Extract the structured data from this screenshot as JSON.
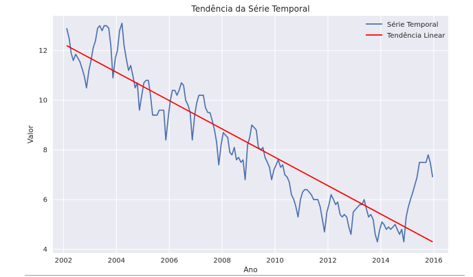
{
  "chart_data": {
    "type": "line",
    "title": "Tendência da Série Temporal",
    "xlabel": "Ano",
    "ylabel": "Valor",
    "xlim": [
      2001.6,
      2016.55
    ],
    "ylim": [
      3.85,
      13.4
    ],
    "xticks": [
      2002,
      2004,
      2006,
      2008,
      2010,
      2012,
      2014,
      2016
    ],
    "xtick_labels": [
      "2002",
      "2004",
      "2006",
      "2008",
      "2010",
      "2012",
      "2014",
      "2016"
    ],
    "yticks": [
      4,
      6,
      8,
      10,
      12
    ],
    "ytick_labels": [
      "4",
      "6",
      "8",
      "10",
      "12"
    ],
    "grid": true,
    "legend_position": "top-right",
    "series": [
      {
        "name": "Série Temporal",
        "color": "#4c72b0",
        "points": [
          [
            2002.12,
            12.9
          ],
          [
            2002.21,
            12.5
          ],
          [
            2002.29,
            11.9
          ],
          [
            2002.37,
            11.6
          ],
          [
            2002.46,
            11.85
          ],
          [
            2002.54,
            11.7
          ],
          [
            2002.62,
            11.55
          ],
          [
            2002.71,
            11.25
          ],
          [
            2002.79,
            10.95
          ],
          [
            2002.87,
            10.5
          ],
          [
            2002.96,
            11.2
          ],
          [
            2003.04,
            11.6
          ],
          [
            2003.12,
            12.1
          ],
          [
            2003.21,
            12.4
          ],
          [
            2003.29,
            12.9
          ],
          [
            2003.37,
            13.0
          ],
          [
            2003.46,
            12.8
          ],
          [
            2003.54,
            13.0
          ],
          [
            2003.62,
            13.0
          ],
          [
            2003.71,
            12.9
          ],
          [
            2003.79,
            12.2
          ],
          [
            2003.87,
            10.9
          ],
          [
            2003.96,
            11.7
          ],
          [
            2004.04,
            12.0
          ],
          [
            2004.12,
            12.8
          ],
          [
            2004.21,
            13.1
          ],
          [
            2004.29,
            12.2
          ],
          [
            2004.37,
            11.7
          ],
          [
            2004.46,
            11.2
          ],
          [
            2004.54,
            11.4
          ],
          [
            2004.62,
            11.0
          ],
          [
            2004.71,
            10.5
          ],
          [
            2004.79,
            10.7
          ],
          [
            2004.87,
            9.6
          ],
          [
            2004.96,
            10.2
          ],
          [
            2005.04,
            10.7
          ],
          [
            2005.12,
            10.8
          ],
          [
            2005.21,
            10.8
          ],
          [
            2005.29,
            10.2
          ],
          [
            2005.37,
            9.4
          ],
          [
            2005.46,
            9.4
          ],
          [
            2005.54,
            9.4
          ],
          [
            2005.62,
            9.6
          ],
          [
            2005.71,
            9.6
          ],
          [
            2005.79,
            9.6
          ],
          [
            2005.87,
            8.4
          ],
          [
            2005.96,
            9.3
          ],
          [
            2006.04,
            10.0
          ],
          [
            2006.12,
            10.4
          ],
          [
            2006.21,
            10.4
          ],
          [
            2006.29,
            10.2
          ],
          [
            2006.37,
            10.4
          ],
          [
            2006.46,
            10.7
          ],
          [
            2006.54,
            10.6
          ],
          [
            2006.62,
            10.0
          ],
          [
            2006.71,
            9.8
          ],
          [
            2006.79,
            9.5
          ],
          [
            2006.87,
            8.4
          ],
          [
            2006.96,
            9.4
          ],
          [
            2007.04,
            9.9
          ],
          [
            2007.12,
            10.2
          ],
          [
            2007.21,
            10.2
          ],
          [
            2007.29,
            10.2
          ],
          [
            2007.37,
            9.7
          ],
          [
            2007.46,
            9.5
          ],
          [
            2007.54,
            9.5
          ],
          [
            2007.62,
            9.2
          ],
          [
            2007.71,
            8.8
          ],
          [
            2007.79,
            8.3
          ],
          [
            2007.87,
            7.4
          ],
          [
            2007.96,
            8.2
          ],
          [
            2008.04,
            8.7
          ],
          [
            2008.12,
            8.6
          ],
          [
            2008.21,
            8.5
          ],
          [
            2008.29,
            7.9
          ],
          [
            2008.37,
            7.8
          ],
          [
            2008.46,
            8.1
          ],
          [
            2008.54,
            7.6
          ],
          [
            2008.62,
            7.7
          ],
          [
            2008.71,
            7.5
          ],
          [
            2008.79,
            7.6
          ],
          [
            2008.87,
            6.8
          ],
          [
            2008.96,
            8.2
          ],
          [
            2009.04,
            8.5
          ],
          [
            2009.12,
            9.0
          ],
          [
            2009.21,
            8.9
          ],
          [
            2009.29,
            8.8
          ],
          [
            2009.37,
            8.1
          ],
          [
            2009.46,
            8.0
          ],
          [
            2009.54,
            8.1
          ],
          [
            2009.62,
            7.7
          ],
          [
            2009.71,
            7.5
          ],
          [
            2009.79,
            7.3
          ],
          [
            2009.87,
            6.8
          ],
          [
            2009.96,
            7.2
          ],
          [
            2010.04,
            7.4
          ],
          [
            2010.12,
            7.6
          ],
          [
            2010.21,
            7.3
          ],
          [
            2010.29,
            7.4
          ],
          [
            2010.37,
            7.0
          ],
          [
            2010.46,
            6.9
          ],
          [
            2010.54,
            6.7
          ],
          [
            2010.62,
            6.2
          ],
          [
            2010.71,
            6.0
          ],
          [
            2010.79,
            5.7
          ],
          [
            2010.87,
            5.3
          ],
          [
            2010.96,
            6.0
          ],
          [
            2011.04,
            6.3
          ],
          [
            2011.12,
            6.4
          ],
          [
            2011.21,
            6.4
          ],
          [
            2011.29,
            6.3
          ],
          [
            2011.37,
            6.2
          ],
          [
            2011.46,
            6.0
          ],
          [
            2011.54,
            6.0
          ],
          [
            2011.62,
            6.0
          ],
          [
            2011.71,
            5.7
          ],
          [
            2011.79,
            5.2
          ],
          [
            2011.87,
            4.7
          ],
          [
            2011.96,
            5.5
          ],
          [
            2012.04,
            5.8
          ],
          [
            2012.12,
            6.2
          ],
          [
            2012.21,
            6.0
          ],
          [
            2012.29,
            5.8
          ],
          [
            2012.37,
            5.9
          ],
          [
            2012.46,
            5.4
          ],
          [
            2012.54,
            5.3
          ],
          [
            2012.62,
            5.4
          ],
          [
            2012.71,
            5.3
          ],
          [
            2012.79,
            4.9
          ],
          [
            2012.87,
            4.6
          ],
          [
            2012.96,
            5.5
          ],
          [
            2013.04,
            5.6
          ],
          [
            2013.12,
            5.7
          ],
          [
            2013.21,
            5.8
          ],
          [
            2013.29,
            5.8
          ],
          [
            2013.37,
            6.0
          ],
          [
            2013.46,
            5.6
          ],
          [
            2013.54,
            5.3
          ],
          [
            2013.62,
            5.4
          ],
          [
            2013.71,
            5.2
          ],
          [
            2013.79,
            4.6
          ],
          [
            2013.87,
            4.3
          ],
          [
            2013.96,
            4.8
          ],
          [
            2014.04,
            5.1
          ],
          [
            2014.12,
            5.0
          ],
          [
            2014.21,
            4.8
          ],
          [
            2014.29,
            4.9
          ],
          [
            2014.37,
            4.8
          ],
          [
            2014.46,
            4.9
          ],
          [
            2014.54,
            5.0
          ],
          [
            2014.62,
            4.8
          ],
          [
            2014.71,
            4.6
          ],
          [
            2014.79,
            4.8
          ],
          [
            2014.87,
            4.3
          ],
          [
            2014.96,
            5.3
          ],
          [
            2015.04,
            5.7
          ],
          [
            2015.12,
            6.0
          ],
          [
            2015.21,
            6.3
          ],
          [
            2015.29,
            6.6
          ],
          [
            2015.37,
            6.9
          ],
          [
            2015.46,
            7.5
          ],
          [
            2015.54,
            7.5
          ],
          [
            2015.62,
            7.5
          ],
          [
            2015.71,
            7.5
          ],
          [
            2015.79,
            7.8
          ],
          [
            2015.87,
            7.5
          ],
          [
            2015.96,
            6.9
          ]
        ]
      },
      {
        "name": "Tendência Linear",
        "color": "#ff0000",
        "points": [
          [
            2002.12,
            12.2
          ],
          [
            2015.96,
            4.3
          ]
        ]
      }
    ]
  }
}
